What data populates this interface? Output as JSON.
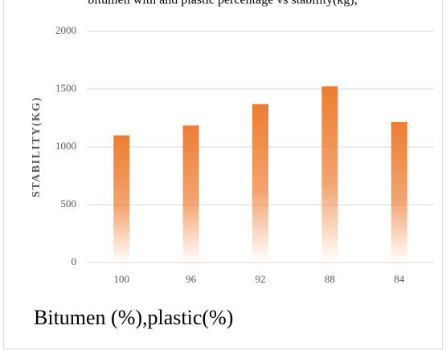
{
  "chart_data": {
    "type": "bar",
    "title": "bitumen with and plastic percentage vs stability(kg),",
    "x_label": "Bitumen (%),plastic(%)",
    "y_label": "STABILITY(KG)",
    "categories": [
      "100",
      "96",
      "92",
      "88",
      "84"
    ],
    "values": [
      1100,
      1185,
      1370,
      1525,
      1215
    ],
    "color": "#ed7d31",
    "ylim": [
      0,
      2000
    ],
    "yticks": [
      0,
      500,
      1000,
      1500,
      2000
    ],
    "grid": true
  }
}
